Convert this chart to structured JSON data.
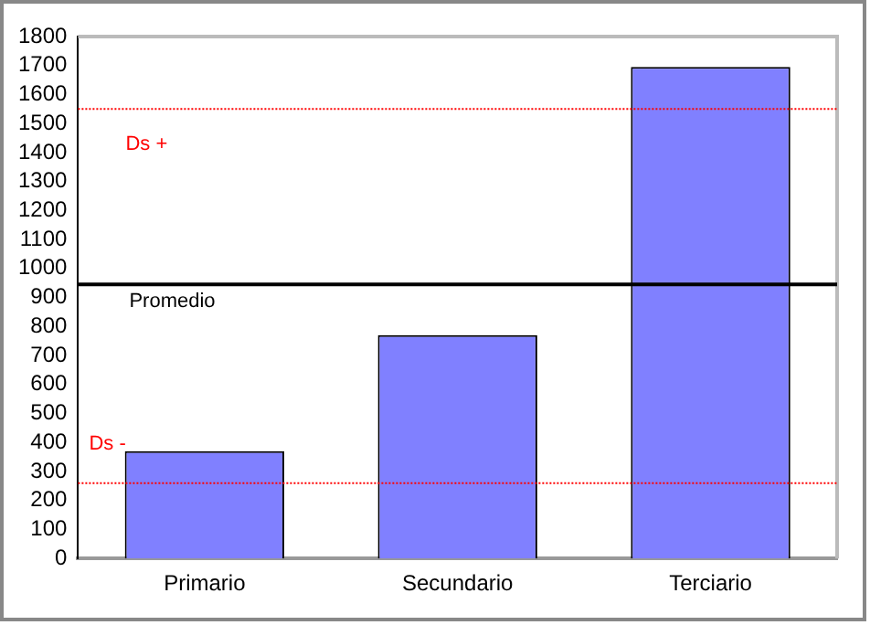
{
  "chart_data": {
    "type": "bar",
    "categories": [
      "Primario",
      "Secundario",
      "Terciario"
    ],
    "values": [
      370,
      770,
      1695
    ],
    "color": "#8080ff",
    "ylim": [
      0,
      1800
    ],
    "yticks": [
      0,
      100,
      200,
      300,
      400,
      500,
      600,
      700,
      800,
      900,
      1000,
      1100,
      1200,
      1300,
      1400,
      1500,
      1600,
      1700,
      1800
    ],
    "grid": false,
    "legend": false,
    "ref_lines": [
      {
        "axis": "y",
        "value": 1550,
        "label": "Ds +",
        "color": "#ff0000",
        "line_style": "dotted"
      },
      {
        "axis": "y",
        "value": 945,
        "label": "Promedio",
        "color": "#000000",
        "line_style": "solid"
      },
      {
        "axis": "y",
        "value": 260,
        "label": "Ds -",
        "color": "#ff0000",
        "line_style": "dotted"
      }
    ]
  }
}
